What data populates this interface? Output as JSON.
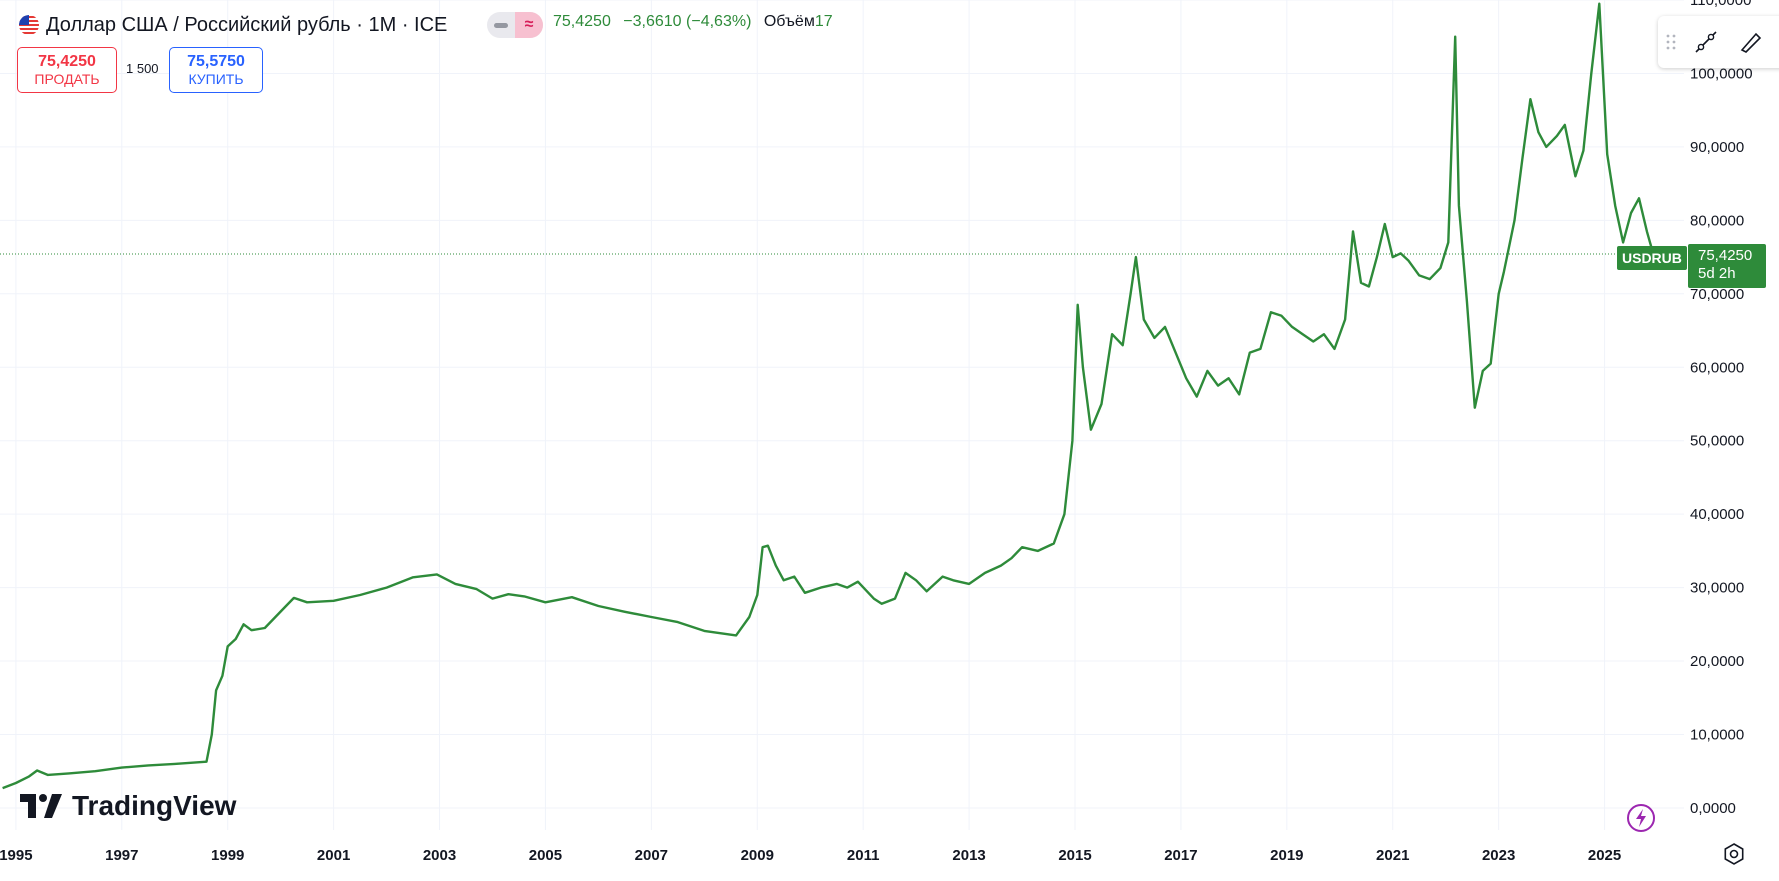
{
  "header": {
    "title": "Доллар США / Российский рубль · 1M · ICE",
    "mode_approx_symbol": "≈",
    "last_price": "75,4250",
    "change": "−3,6610 (−4,63%)",
    "volume_label": "Объём",
    "volume_value": "17"
  },
  "trade": {
    "sell_price": "75,4250",
    "sell_label": "ПРОДАТЬ",
    "spread": "1 500",
    "buy_price": "75,5750",
    "buy_label": "КУПИТЬ"
  },
  "price_tag": {
    "symbol": "USDRUB",
    "value": "75,4250",
    "countdown": "5d 2h"
  },
  "logo": {
    "text": "TradingView"
  },
  "colors": {
    "line": "#2e8b3a",
    "grid": "#f0f3fa",
    "sell": "#f23645",
    "buy": "#2962ff",
    "bolt": "#9c27b0"
  },
  "chart_data": {
    "type": "line",
    "title": "Доллар США / Российский рубль · 1M · ICE",
    "xlabel": "",
    "ylabel": "",
    "x_ticks": [
      "1995",
      "1997",
      "1999",
      "2001",
      "2003",
      "2005",
      "2007",
      "2009",
      "2011",
      "2013",
      "2015",
      "2017",
      "2019",
      "2021",
      "2023",
      "2025"
    ],
    "y_ticks": [
      "0,0000",
      "10,0000",
      "20,0000",
      "30,0000",
      "40,0000",
      "50,0000",
      "60,0000",
      "70,0000",
      "80,0000",
      "90,0000",
      "100,0000",
      "110,0000"
    ],
    "ylim": [
      -3,
      110
    ],
    "xlim": [
      1994.7,
      2026.5
    ],
    "grid": true,
    "current_value": 75.425,
    "series": [
      {
        "values": [
          [
            1994.75,
            2.7
          ],
          [
            1995.0,
            3.4
          ],
          [
            1995.25,
            4.3
          ],
          [
            1995.4,
            5.1
          ],
          [
            1995.6,
            4.5
          ],
          [
            1996.0,
            4.7
          ],
          [
            1996.5,
            5.0
          ],
          [
            1997.0,
            5.5
          ],
          [
            1997.5,
            5.8
          ],
          [
            1998.0,
            6.0
          ],
          [
            1998.4,
            6.2
          ],
          [
            1998.6,
            6.3
          ],
          [
            1998.7,
            10.0
          ],
          [
            1998.78,
            16.0
          ],
          [
            1998.9,
            18.0
          ],
          [
            1999.0,
            22.0
          ],
          [
            1999.15,
            23.0
          ],
          [
            1999.3,
            25.0
          ],
          [
            1999.45,
            24.2
          ],
          [
            1999.7,
            24.5
          ],
          [
            1999.9,
            26.0
          ],
          [
            2000.1,
            27.5
          ],
          [
            2000.25,
            28.6
          ],
          [
            2000.5,
            28.0
          ],
          [
            2001.0,
            28.2
          ],
          [
            2001.5,
            29.0
          ],
          [
            2002.0,
            30.0
          ],
          [
            2002.5,
            31.4
          ],
          [
            2002.95,
            31.8
          ],
          [
            2003.3,
            30.5
          ],
          [
            2003.7,
            29.8
          ],
          [
            2004.0,
            28.5
          ],
          [
            2004.3,
            29.1
          ],
          [
            2004.6,
            28.8
          ],
          [
            2005.0,
            28.0
          ],
          [
            2005.5,
            28.7
          ],
          [
            2006.0,
            27.5
          ],
          [
            2006.5,
            26.7
          ],
          [
            2007.0,
            26.0
          ],
          [
            2007.5,
            25.3
          ],
          [
            2008.0,
            24.1
          ],
          [
            2008.3,
            23.8
          ],
          [
            2008.6,
            23.5
          ],
          [
            2008.85,
            26.0
          ],
          [
            2009.0,
            29.0
          ],
          [
            2009.1,
            35.5
          ],
          [
            2009.2,
            35.7
          ],
          [
            2009.35,
            33.0
          ],
          [
            2009.5,
            31.0
          ],
          [
            2009.7,
            31.5
          ],
          [
            2009.9,
            29.3
          ],
          [
            2010.2,
            30.0
          ],
          [
            2010.5,
            30.5
          ],
          [
            2010.7,
            30.0
          ],
          [
            2010.9,
            30.8
          ],
          [
            2011.2,
            28.5
          ],
          [
            2011.35,
            27.8
          ],
          [
            2011.6,
            28.5
          ],
          [
            2011.8,
            32.0
          ],
          [
            2012.0,
            31.0
          ],
          [
            2012.2,
            29.5
          ],
          [
            2012.5,
            31.5
          ],
          [
            2012.7,
            31.0
          ],
          [
            2013.0,
            30.5
          ],
          [
            2013.3,
            32.0
          ],
          [
            2013.6,
            33.0
          ],
          [
            2013.8,
            34.0
          ],
          [
            2014.0,
            35.5
          ],
          [
            2014.3,
            35.0
          ],
          [
            2014.6,
            36.0
          ],
          [
            2014.8,
            40.0
          ],
          [
            2014.95,
            50.0
          ],
          [
            2015.05,
            68.5
          ],
          [
            2015.15,
            60.0
          ],
          [
            2015.3,
            51.5
          ],
          [
            2015.5,
            55.0
          ],
          [
            2015.7,
            64.5
          ],
          [
            2015.9,
            63.0
          ],
          [
            2016.05,
            70.0
          ],
          [
            2016.15,
            75.0
          ],
          [
            2016.3,
            66.5
          ],
          [
            2016.5,
            64.0
          ],
          [
            2016.7,
            65.5
          ],
          [
            2016.9,
            62.0
          ],
          [
            2017.1,
            58.5
          ],
          [
            2017.3,
            56.0
          ],
          [
            2017.5,
            59.5
          ],
          [
            2017.7,
            57.5
          ],
          [
            2017.9,
            58.5
          ],
          [
            2018.1,
            56.3
          ],
          [
            2018.3,
            62.0
          ],
          [
            2018.5,
            62.5
          ],
          [
            2018.7,
            67.5
          ],
          [
            2018.9,
            67.0
          ],
          [
            2019.1,
            65.5
          ],
          [
            2019.3,
            64.5
          ],
          [
            2019.5,
            63.5
          ],
          [
            2019.7,
            64.5
          ],
          [
            2019.9,
            62.5
          ],
          [
            2020.1,
            66.5
          ],
          [
            2020.25,
            78.5
          ],
          [
            2020.4,
            71.5
          ],
          [
            2020.55,
            71.0
          ],
          [
            2020.7,
            75.0
          ],
          [
            2020.85,
            79.5
          ],
          [
            2021.0,
            75.0
          ],
          [
            2021.15,
            75.5
          ],
          [
            2021.3,
            74.5
          ],
          [
            2021.5,
            72.5
          ],
          [
            2021.7,
            72.0
          ],
          [
            2021.9,
            73.5
          ],
          [
            2022.05,
            77.0
          ],
          [
            2022.18,
            105.0
          ],
          [
            2022.25,
            82.0
          ],
          [
            2022.4,
            69.0
          ],
          [
            2022.55,
            54.5
          ],
          [
            2022.7,
            59.5
          ],
          [
            2022.85,
            60.5
          ],
          [
            2023.0,
            70.0
          ],
          [
            2023.1,
            73.0
          ],
          [
            2023.3,
            80.0
          ],
          [
            2023.45,
            88.5
          ],
          [
            2023.6,
            96.5
          ],
          [
            2023.75,
            92.0
          ],
          [
            2023.9,
            90.0
          ],
          [
            2024.1,
            91.5
          ],
          [
            2024.25,
            93.0
          ],
          [
            2024.45,
            86.0
          ],
          [
            2024.6,
            89.5
          ],
          [
            2024.75,
            100.0
          ],
          [
            2024.9,
            109.5
          ],
          [
            2025.05,
            89.0
          ],
          [
            2025.2,
            82.0
          ],
          [
            2025.35,
            77.0
          ],
          [
            2025.5,
            81.0
          ],
          [
            2025.65,
            83.0
          ],
          [
            2025.8,
            78.5
          ],
          [
            2025.92,
            75.4
          ]
        ]
      }
    ]
  }
}
